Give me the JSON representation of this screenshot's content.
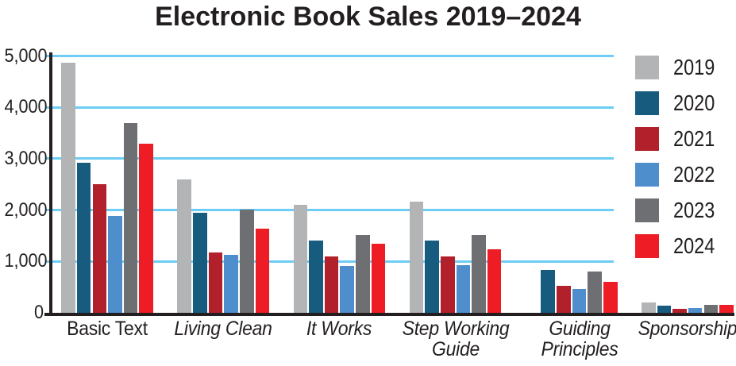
{
  "chart_data": {
    "type": "bar",
    "title": "Electronic Book Sales 2019–2024",
    "xlabel": "",
    "ylabel": "",
    "grid": true,
    "legend_position": "right",
    "ylim": [
      0,
      5000
    ],
    "categories": [
      {
        "label": "Basic Text",
        "italic": false,
        "lines": [
          "Basic Text"
        ]
      },
      {
        "label": "Living Clean",
        "italic": true,
        "lines": [
          "Living Clean"
        ]
      },
      {
        "label": "It Works",
        "italic": true,
        "lines": [
          "It Works"
        ]
      },
      {
        "label": "Step Working Guide",
        "italic": true,
        "lines": [
          "Step Working",
          "Guide"
        ]
      },
      {
        "label": "Guiding Principles",
        "italic": true,
        "lines": [
          "Guiding",
          "Principles"
        ]
      },
      {
        "label": "Sponsorship",
        "italic": true,
        "lines": [
          "Sponsorship"
        ]
      }
    ],
    "series": [
      {
        "name": "2019",
        "color": "#b2b4b6",
        "values": [
          4870,
          2600,
          2100,
          2170,
          null,
          200
        ]
      },
      {
        "name": "2020",
        "color": "#175b7e",
        "values": [
          2920,
          1940,
          1410,
          1410,
          840,
          140
        ]
      },
      {
        "name": "2021",
        "color": "#b2212b",
        "values": [
          2510,
          1180,
          1090,
          1100,
          520,
          80
        ]
      },
      {
        "name": "2022",
        "color": "#4e8ecd",
        "values": [
          1880,
          1130,
          910,
          920,
          470,
          90
        ]
      },
      {
        "name": "2023",
        "color": "#6d6f72",
        "values": [
          3700,
          2010,
          1510,
          1510,
          810,
          150
        ]
      },
      {
        "name": "2024",
        "color": "#ee1c25",
        "values": [
          3290,
          1640,
          1340,
          1240,
          600,
          160
        ]
      }
    ],
    "y_axis": {
      "tick_labels": [
        "5,000",
        "4,000",
        "3,000",
        "2,000",
        "1,000",
        "0"
      ],
      "tick_values": [
        5000,
        4000,
        3000,
        2000,
        1000,
        0
      ]
    },
    "colors": {
      "gridline": "#6dcdf4",
      "axis": "#231f20",
      "text": "#231f20",
      "background": "#ffffff"
    }
  }
}
